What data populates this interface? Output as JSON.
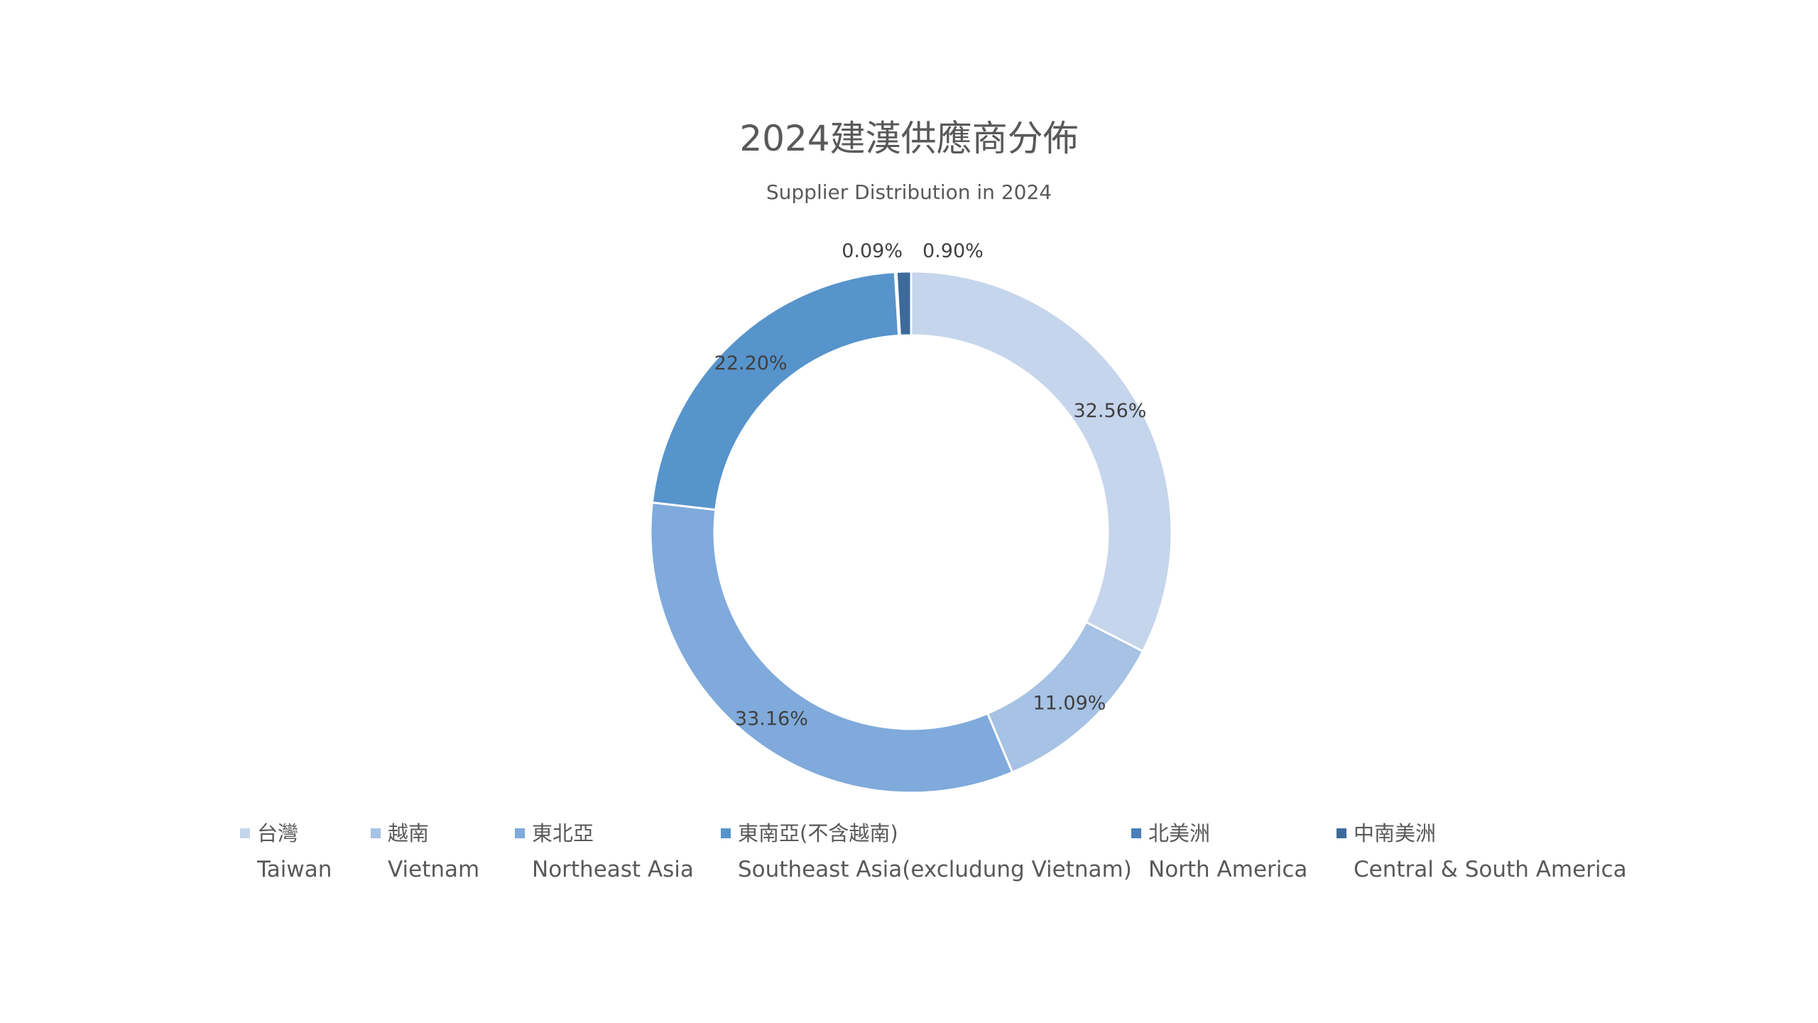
{
  "chart_data": {
    "type": "pie",
    "style": "donut",
    "title": "2024建漢供應商分佈",
    "subtitle": "Supplier Distribution in 2024",
    "legend_position": "bottom",
    "slices": [
      {
        "label": "台灣",
        "label_en": "Taiwan",
        "value": 32.56,
        "value_label": "32.56%",
        "color": "#C5D5EC"
      },
      {
        "label": "越南",
        "label_en": "Vietnam",
        "value": 11.09,
        "value_label": "11.09%",
        "color": "#A6C2E4"
      },
      {
        "label": "東北亞",
        "label_en": "Northeast Asia",
        "value": 33.16,
        "value_label": "33.16%",
        "color": "#7FAADB"
      },
      {
        "label": "東南亞(不含越南)",
        "label_en": "Southeast Asia(excludung Vietnam)",
        "value": 22.2,
        "value_label": "22.20%",
        "color": "#5794CC"
      },
      {
        "label": "北美洲",
        "label_en": "North America",
        "value": 0.09,
        "value_label": "0.09%",
        "color": "#4A7FB8"
      },
      {
        "label": "中南美洲",
        "label_en": "Central & South America",
        "value": 0.9,
        "value_label": "0.90%",
        "color": "#3E6A9A"
      }
    ]
  }
}
